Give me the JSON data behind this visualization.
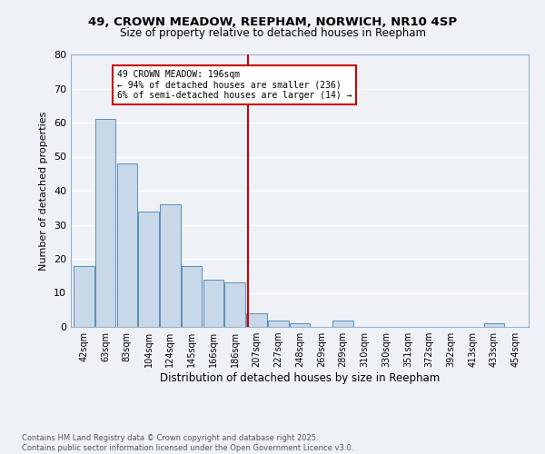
{
  "title1": "49, CROWN MEADOW, REEPHAM, NORWICH, NR10 4SP",
  "title2": "Size of property relative to detached houses in Reepham",
  "xlabel": "Distribution of detached houses by size in Reepham",
  "ylabel": "Number of detached properties",
  "bar_labels": [
    "42sqm",
    "63sqm",
    "83sqm",
    "104sqm",
    "124sqm",
    "145sqm",
    "166sqm",
    "186sqm",
    "207sqm",
    "227sqm",
    "248sqm",
    "269sqm",
    "289sqm",
    "310sqm",
    "330sqm",
    "351sqm",
    "372sqm",
    "392sqm",
    "413sqm",
    "433sqm",
    "454sqm"
  ],
  "bar_values": [
    18,
    61,
    48,
    34,
    36,
    18,
    14,
    13,
    4,
    2,
    1,
    0,
    2,
    0,
    0,
    0,
    0,
    0,
    0,
    1,
    0
  ],
  "bar_color": "#c8d8e8",
  "bar_edge_color": "#5b8db8",
  "ylim": [
    0,
    80
  ],
  "yticks": [
    0,
    10,
    20,
    30,
    40,
    50,
    60,
    70,
    80
  ],
  "vline_x": 7.62,
  "vline_color": "#cc0000",
  "annotation_text": "49 CROWN MEADOW: 196sqm\n← 94% of detached houses are smaller (236)\n6% of semi-detached houses are larger (14) →",
  "footer": "Contains HM Land Registry data © Crown copyright and database right 2025.\nContains public sector information licensed under the Open Government Licence v3.0.",
  "bg_color": "#eef2f7",
  "plot_bg_color": "#eef2f7",
  "grid_color": "#ffffff"
}
